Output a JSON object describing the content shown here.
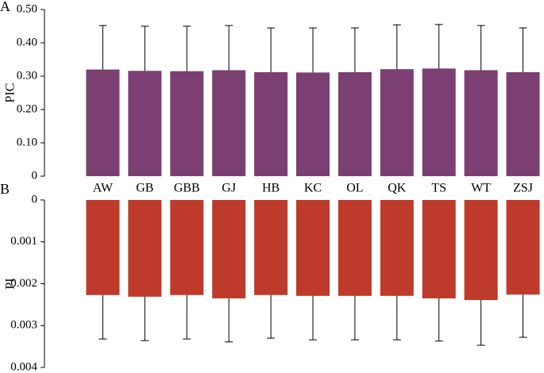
{
  "chart_data": [
    {
      "type": "bar",
      "panel_label": "A",
      "y_label": "PIC",
      "color": "#7b3f72",
      "categories": [
        "AW",
        "GB",
        "GBB",
        "GJ",
        "HB",
        "KC",
        "OL",
        "QK",
        "TS",
        "WT",
        "ZSJ"
      ],
      "values": [
        0.32,
        0.316,
        0.315,
        0.318,
        0.312,
        0.311,
        0.312,
        0.321,
        0.323,
        0.318,
        0.312
      ],
      "errors": [
        0.132,
        0.134,
        0.135,
        0.134,
        0.133,
        0.134,
        0.133,
        0.133,
        0.132,
        0.134,
        0.133
      ],
      "ylim": [
        0,
        0.5
      ],
      "yticks": [
        0,
        {
          "value": 0.1,
          "label": "0.10"
        },
        {
          "value": 0.2,
          "label": "0.20"
        },
        {
          "value": 0.3,
          "label": "0.30"
        },
        {
          "value": 0.4,
          "label": "0.40"
        },
        {
          "value": 0.5,
          "label": "0.50"
        }
      ],
      "inverted_y": false
    },
    {
      "type": "bar",
      "panel_label": "B",
      "y_label": "PI",
      "color": "#be3a2b",
      "categories": [
        null,
        null,
        null,
        null,
        null,
        null,
        null,
        null,
        null,
        null,
        null
      ],
      "values": [
        0.00227,
        0.00231,
        0.00227,
        0.00235,
        0.00227,
        0.00229,
        0.00229,
        0.00229,
        0.00235,
        0.00239,
        0.00226
      ],
      "errors": [
        0.00105,
        0.00105,
        0.00105,
        0.00104,
        0.00103,
        0.00105,
        0.00105,
        0.00105,
        0.00102,
        0.00108,
        0.00102
      ],
      "ylim": [
        0,
        0.004
      ],
      "yticks": [
        0,
        0.001,
        0.002,
        0.003,
        0.004
      ],
      "inverted_y": true
    }
  ]
}
